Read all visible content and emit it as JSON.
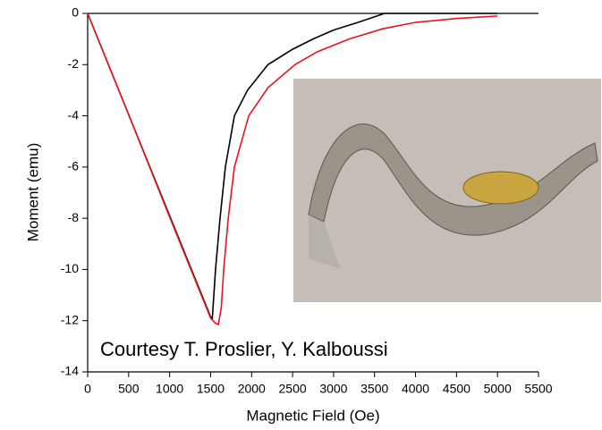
{
  "chart_data": {
    "type": "line",
    "xlabel": "Magnetic Field (Oe)",
    "ylabel": "Moment (emu)",
    "annotation": "Courtesy T. Proslier, Y. Kalboussi",
    "xlim": [
      0,
      5500
    ],
    "ylim": [
      -14,
      0
    ],
    "xticks": [
      0,
      500,
      1000,
      1500,
      2000,
      2500,
      3000,
      3500,
      4000,
      4500,
      5000,
      5500
    ],
    "yticks": [
      0,
      -2,
      -4,
      -6,
      -8,
      -10,
      -12,
      -14
    ],
    "series": [
      {
        "color": "#000000",
        "x": [
          0,
          500,
          1000,
          1500,
          1520,
          1560,
          1615,
          1680,
          1790,
          1950,
          2200,
          2500,
          2750,
          3000,
          3300,
          3620,
          4000,
          5000
        ],
        "values": [
          0,
          -3.95,
          -7.9,
          -11.85,
          -11.94,
          -10,
          -8,
          -6,
          -4,
          -3,
          -2,
          -1.4,
          -1,
          -0.65,
          -0.35,
          0,
          0,
          0
        ]
      },
      {
        "color": "#e8141b",
        "x": [
          0,
          500,
          1000,
          1500,
          1560,
          1594,
          1630,
          1660,
          1715,
          1790,
          1965,
          2200,
          2530,
          2800,
          3190,
          3600,
          4000,
          4500,
          5000
        ],
        "values": [
          0,
          -3.95,
          -7.95,
          -11.9,
          -12.1,
          -12.15,
          -11.5,
          -10,
          -8,
          -6,
          -4,
          -2.9,
          -2,
          -1.5,
          -1,
          -0.6,
          -0.35,
          -0.2,
          -0.1
        ]
      }
    ]
  }
}
